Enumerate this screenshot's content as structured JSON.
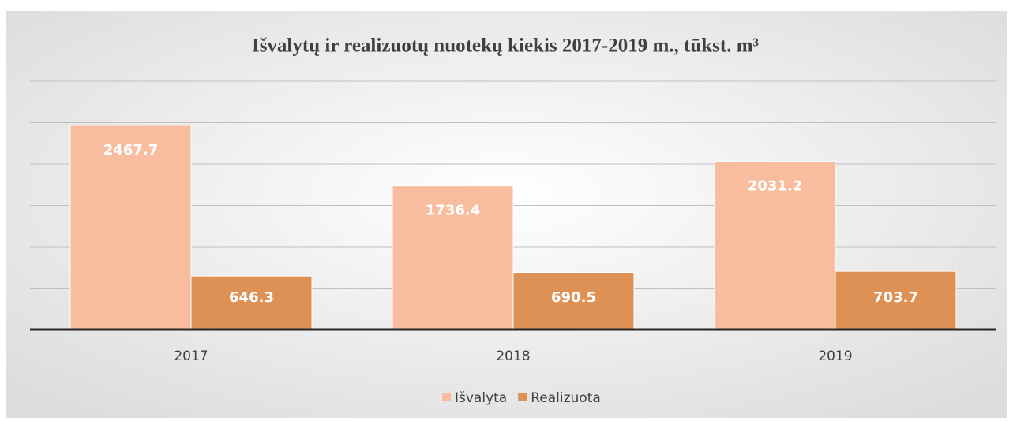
{
  "chart_data": {
    "type": "bar",
    "title": "Išvalytų ir realizuotų nuotekų kiekis  2017-2019  m., tūkst. m³",
    "categories": [
      "2017",
      "2018",
      "2019"
    ],
    "series": [
      {
        "name": "Išvalyta",
        "color": "#f8bd9f",
        "values": [
          2467.7,
          1736.4,
          2031.2
        ]
      },
      {
        "name": "Realizuota",
        "color": "#dd9155",
        "values": [
          646.3,
          690.5,
          703.7
        ]
      }
    ],
    "ylim": [
      0,
      3000
    ],
    "yticks": [
      0,
      500,
      1000,
      1500,
      2000,
      2500,
      3000
    ],
    "grid": true,
    "legend": "bottom"
  }
}
